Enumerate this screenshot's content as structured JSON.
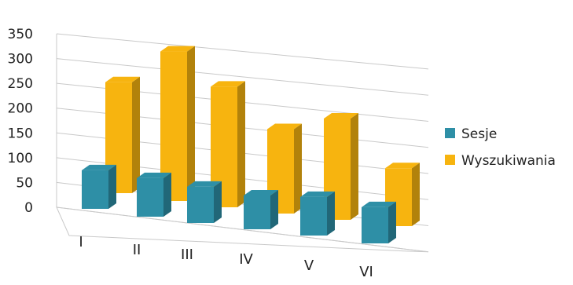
{
  "chart_data": {
    "type": "bar",
    "title": "",
    "xlabel": "",
    "ylabel": "",
    "ylim": [
      0,
      350
    ],
    "y_ticks": [
      "0",
      "50",
      "100",
      "150",
      "200",
      "250",
      "300",
      "350"
    ],
    "categories": [
      "I",
      "II",
      "III",
      "IV",
      "V",
      "VI"
    ],
    "grid": true,
    "legend_position": "right",
    "style": "3d-clustered-column",
    "series": [
      {
        "name": "Sesje",
        "color": "#2E8FA6",
        "values": [
          80,
          80,
          75,
          70,
          80,
          75
        ]
      },
      {
        "name": "Wyszukiwania",
        "color": "#F7B40F",
        "values": [
          230,
          310,
          250,
          175,
          210,
          120
        ]
      }
    ]
  }
}
